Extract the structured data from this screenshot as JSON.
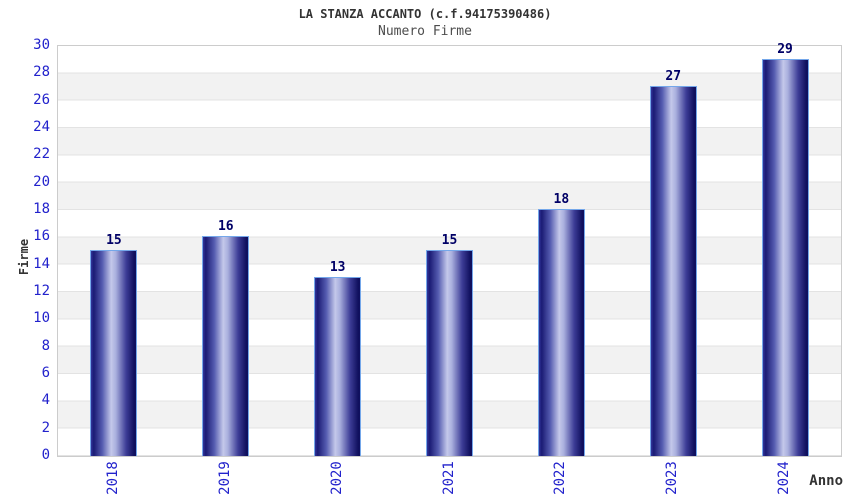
{
  "chart_data": {
    "type": "bar",
    "title": "LA STANZA ACCANTO (c.f.94175390486)",
    "subtitle": "Numero Firme",
    "xlabel": "Anno",
    "ylabel": "Firme",
    "categories": [
      "2018",
      "2019",
      "2020",
      "2021",
      "2022",
      "2023",
      "2024"
    ],
    "values": [
      15,
      16,
      13,
      15,
      18,
      27,
      29
    ],
    "ylim": [
      0,
      30
    ],
    "ytick_step": 2,
    "grid": "horizontal-bands-every-2-units",
    "legend": "none",
    "value_labels": "above-bars",
    "x_tick_rotation_deg": -90,
    "colors": {
      "tick_label_blue": "#2222CC",
      "value_label_navy": "#000066",
      "bar_dark": "#16166E",
      "bar_highlight": "#C4C8EA",
      "bar_border": "#74A7EA",
      "band_gray": "#F2F2F2",
      "plot_border": "#CCCCCC",
      "title_text": "#333333",
      "subtitle_text": "#4D4D4D"
    }
  }
}
